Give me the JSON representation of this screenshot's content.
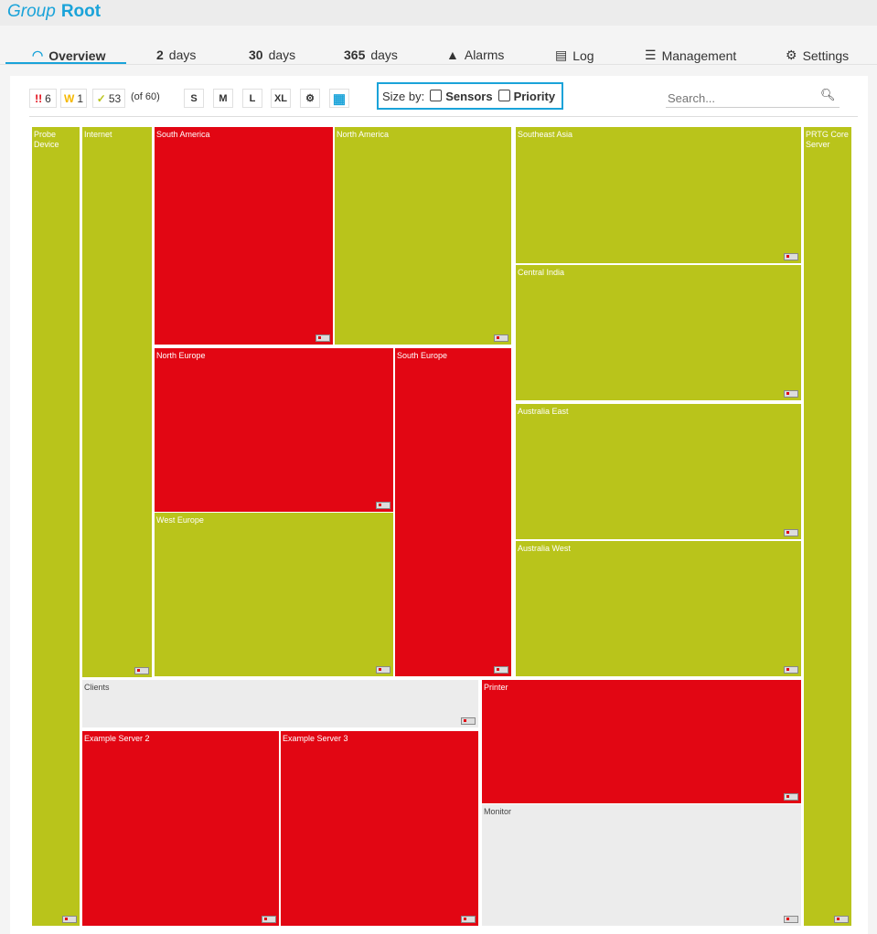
{
  "header": {
    "title_prefix": "Group",
    "title_name": "Root"
  },
  "tabs": [
    {
      "label": "Overview",
      "icon": "gauge-icon"
    },
    {
      "num": "2",
      "label": "days"
    },
    {
      "num": "30",
      "label": "days"
    },
    {
      "num": "365",
      "label": "days"
    },
    {
      "label": "Alarms",
      "icon": "warning-icon"
    },
    {
      "label": "Log",
      "icon": "log-icon"
    },
    {
      "label": "Management",
      "icon": "sliders-icon"
    },
    {
      "label": "Settings",
      "icon": "gear-icon"
    }
  ],
  "toolbar": {
    "down": "6",
    "down_icon": "!!",
    "warning": "1",
    "warning_icon": "W",
    "up": "53",
    "up_icon": "✓",
    "total": "(of 60)",
    "sizes": [
      "S",
      "M",
      "L",
      "XL"
    ],
    "size_by_label": "Size by:",
    "sensors_label": "Sensors",
    "priority_label": "Priority",
    "search_placeholder": "Search..."
  },
  "colors": {
    "up": "#b9c41b",
    "down": "#e20613",
    "none": "#ececec",
    "accent": "#1aa3d9"
  },
  "tiles": [
    {
      "label": "Probe Device",
      "status": "up"
    },
    {
      "label": "Internet",
      "status": "up"
    },
    {
      "label": "South America",
      "status": "down"
    },
    {
      "label": "North America",
      "status": "up"
    },
    {
      "label": "North Europe",
      "status": "down"
    },
    {
      "label": "West Europe",
      "status": "up"
    },
    {
      "label": "South Europe",
      "status": "down"
    },
    {
      "label": "Southeast Asia",
      "status": "up"
    },
    {
      "label": "Central India",
      "status": "up"
    },
    {
      "label": "Australia East",
      "status": "up"
    },
    {
      "label": "Australia West",
      "status": "up"
    },
    {
      "label": "PRTG Core Server",
      "status": "up"
    },
    {
      "label": "Clients",
      "status": "none"
    },
    {
      "label": "Example Server 2",
      "status": "down"
    },
    {
      "label": "Example Server 3",
      "status": "down"
    },
    {
      "label": "Printer",
      "status": "down"
    },
    {
      "label": "Monitor",
      "status": "none"
    }
  ]
}
